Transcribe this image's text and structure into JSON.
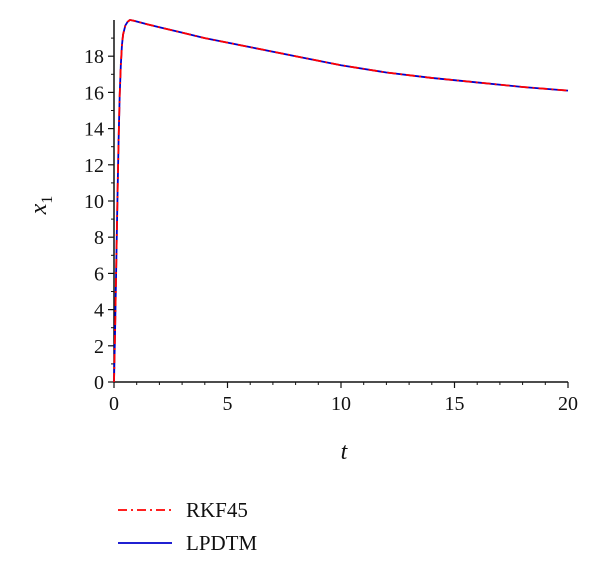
{
  "chart_data": {
    "type": "line",
    "title": "",
    "xlabel": "t",
    "ylabel": {
      "base": "x",
      "subscript": "1"
    },
    "xlim": [
      0,
      20
    ],
    "ylim": [
      0,
      20
    ],
    "xticks": [
      0,
      5,
      10,
      15,
      20
    ],
    "yticks": [
      0,
      2,
      4,
      6,
      8,
      10,
      12,
      14,
      16,
      18
    ],
    "grid": false,
    "legend_position": "bottom-left",
    "series": [
      {
        "name": "RKF45",
        "color": "#ff0000",
        "dash": "dash-dot",
        "x": [
          0,
          0.05,
          0.1,
          0.15,
          0.2,
          0.25,
          0.3,
          0.35,
          0.4,
          0.5,
          0.6,
          0.7,
          0.8,
          1,
          1.5,
          2,
          3,
          4,
          5,
          6,
          8,
          10,
          12,
          14,
          16,
          18,
          20
        ],
        "y": [
          0,
          3.0,
          6.5,
          10.0,
          13.2,
          15.8,
          17.5,
          18.6,
          19.2,
          19.7,
          19.9,
          20.0,
          19.98,
          19.92,
          19.75,
          19.6,
          19.3,
          19.0,
          18.75,
          18.5,
          18.0,
          17.5,
          17.1,
          16.8,
          16.55,
          16.3,
          16.1
        ]
      },
      {
        "name": "LPDTM",
        "color": "#0000cc",
        "dash": "solid",
        "x": [
          0,
          0.05,
          0.1,
          0.15,
          0.2,
          0.25,
          0.3,
          0.35,
          0.4,
          0.5,
          0.6,
          0.7,
          0.8,
          1,
          1.5,
          2,
          3,
          4,
          5,
          6,
          8,
          10,
          12,
          14,
          16,
          18,
          20
        ],
        "y": [
          0,
          3.0,
          6.5,
          10.0,
          13.2,
          15.8,
          17.5,
          18.6,
          19.2,
          19.7,
          19.9,
          20.0,
          19.98,
          19.92,
          19.75,
          19.6,
          19.3,
          19.0,
          18.75,
          18.5,
          18.0,
          17.5,
          17.1,
          16.8,
          16.55,
          16.3,
          16.1
        ]
      }
    ]
  }
}
